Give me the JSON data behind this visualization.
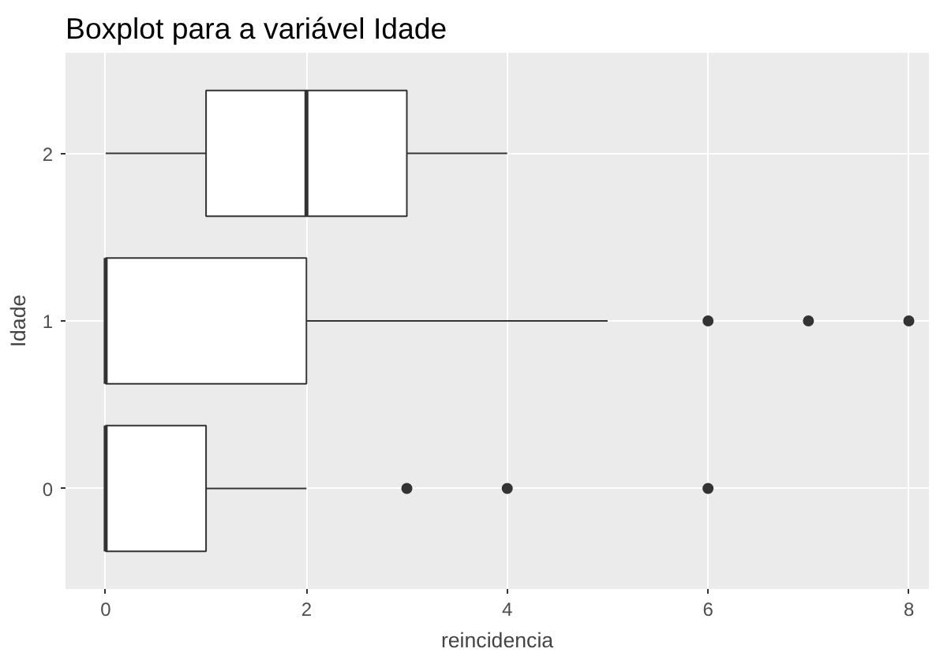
{
  "chart_data": {
    "type": "box",
    "title": "Boxplot para a variável Idade",
    "xlabel": "reincidencia",
    "ylabel": "Idade",
    "orientation": "horizontal",
    "categories": [
      "2",
      "1",
      "0"
    ],
    "boxes": [
      {
        "low": 0,
        "q1": 1,
        "median": 2,
        "q3": 3,
        "high": 4
      },
      {
        "low": 0,
        "q1": 0,
        "median": 0,
        "q3": 2,
        "high": 5,
        "outliers": [
          6,
          7,
          8
        ]
      },
      {
        "low": 0,
        "q1": 0,
        "median": 0,
        "q3": 1,
        "high": 2,
        "outliers": [
          3,
          4,
          6
        ]
      }
    ],
    "xlim": [
      -0.4,
      8.2
    ],
    "xticks": [
      0,
      2,
      4,
      6,
      8
    ],
    "grid": true
  }
}
